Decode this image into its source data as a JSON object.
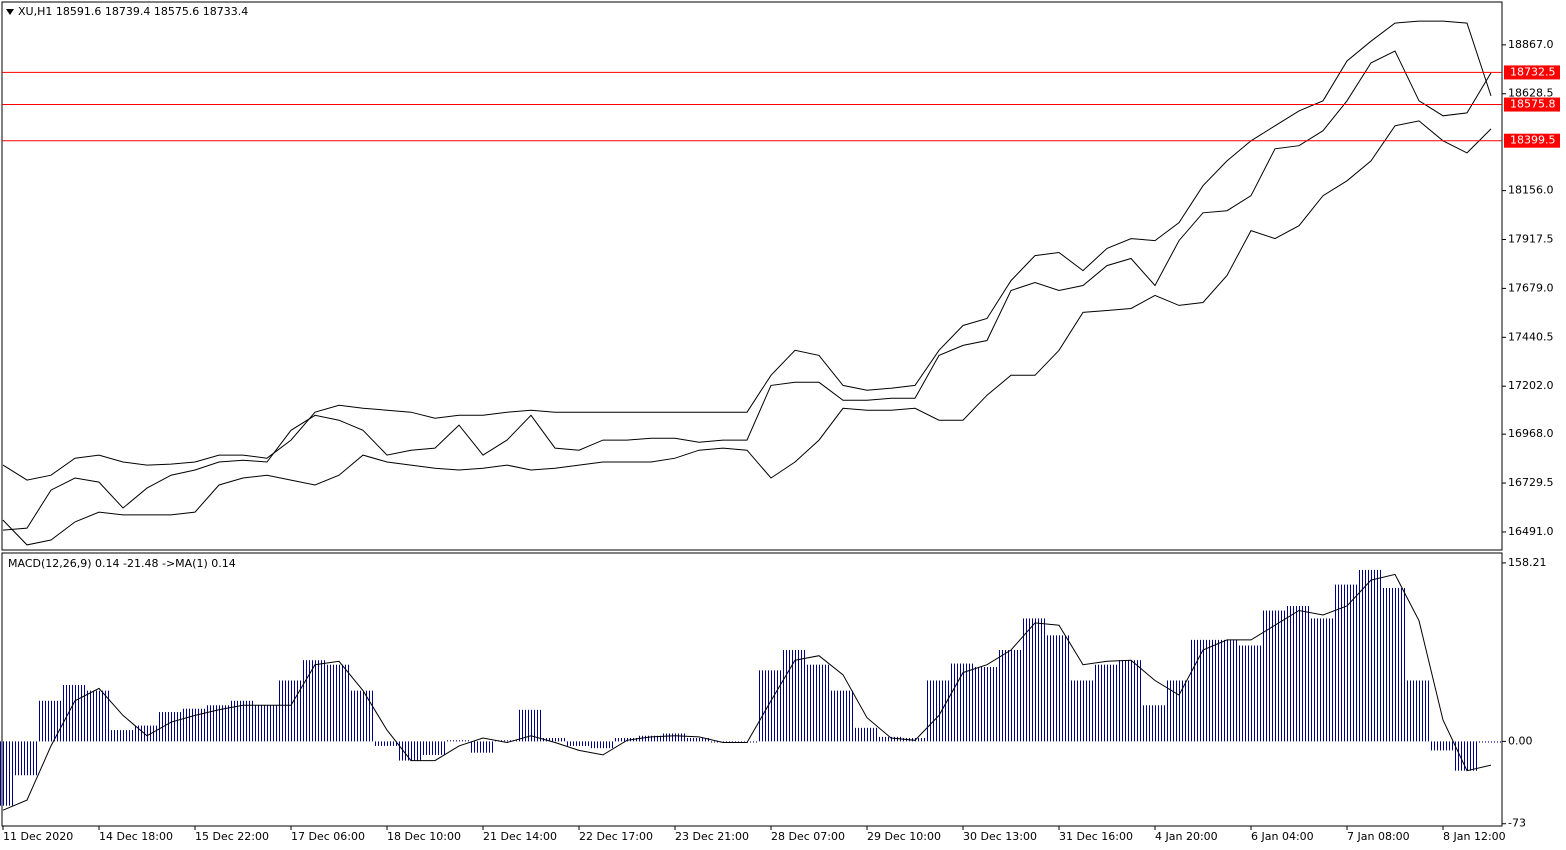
{
  "chart_data": [
    {
      "type": "line",
      "title": "XU,H1  18591.6 18739.4 18575.6 18733.4",
      "x": [
        0,
        6,
        12,
        18,
        24,
        30,
        36,
        42,
        48,
        54,
        60,
        66,
        72,
        78,
        84,
        90,
        96,
        102,
        108,
        114,
        120,
        126,
        132,
        138,
        144,
        150,
        156,
        162,
        168,
        174,
        180,
        186,
        192,
        198,
        204,
        210,
        216,
        222,
        228,
        234,
        240,
        246,
        252,
        258,
        264,
        270,
        276,
        282,
        288,
        294,
        300,
        306,
        312,
        318,
        324,
        330,
        336,
        342,
        348,
        354,
        360,
        366,
        372
      ],
      "xlim": [
        0,
        375
      ],
      "ylim": [
        16403,
        19076
      ],
      "yticks": [
        {
          "value": 16491,
          "label": "16491.0"
        },
        {
          "value": 16729.5,
          "label": "16729.5"
        },
        {
          "value": 16968,
          "label": "16968.0"
        },
        {
          "value": 17202,
          "label": "17202.0"
        },
        {
          "value": 17440.5,
          "label": "17440.5"
        },
        {
          "value": 17679,
          "label": "17679.0"
        },
        {
          "value": 17917.5,
          "label": "17917.5"
        },
        {
          "value": 18156,
          "label": "18156.0"
        },
        {
          "value": 18628.5,
          "label": "18628.5"
        },
        {
          "value": 18867,
          "label": "18867.0"
        }
      ],
      "levels": [
        18732.5,
        18575.8,
        18399.5
      ],
      "level_color": "#ff0000",
      "series": [
        {
          "color": "#000000",
          "values": [
            16500,
            16510,
            16695,
            16754,
            16734,
            16608,
            16705,
            16768,
            16793,
            16832,
            16841,
            16832,
            16987,
            17060,
            17036,
            16987,
            16866,
            16890,
            16900,
            17012,
            16866,
            16939,
            17060,
            16900,
            16890,
            16939,
            16939,
            16948,
            16948,
            16929,
            16939,
            16939,
            17206,
            17221,
            17221,
            17133,
            17133,
            17143,
            17143,
            17352,
            17401,
            17425,
            17669,
            17708,
            17669,
            17693,
            17790,
            17825,
            17693,
            17912,
            18048,
            18058,
            18131,
            18360,
            18375,
            18448,
            18594,
            18779,
            18837,
            18594,
            18521,
            18535,
            18730
          ]
        },
        {
          "color": "#000000",
          "values": [
            16817,
            16744,
            16768,
            16851,
            16866,
            16832,
            16817,
            16822,
            16832,
            16866,
            16866,
            16851,
            16939,
            17075,
            17109,
            17094,
            17085,
            17075,
            17046,
            17060,
            17060,
            17075,
            17085,
            17075,
            17075,
            17075,
            17075,
            17075,
            17075,
            17075,
            17075,
            17075,
            17255,
            17377,
            17352,
            17206,
            17182,
            17192,
            17206,
            17377,
            17498,
            17532,
            17717,
            17839,
            17854,
            17766,
            17874,
            17922,
            17912,
            18000,
            18180,
            18301,
            18399,
            18472,
            18545,
            18594,
            18788,
            18885,
            18973,
            18983,
            18983,
            18973,
            18618
          ]
        },
        {
          "color": "#000000",
          "values": [
            16549,
            16428,
            16452,
            16540,
            16588,
            16574,
            16574,
            16574,
            16588,
            16720,
            16754,
            16768,
            16744,
            16720,
            16768,
            16866,
            16832,
            16817,
            16802,
            16793,
            16802,
            16817,
            16793,
            16802,
            16817,
            16832,
            16832,
            16832,
            16851,
            16890,
            16900,
            16890,
            16754,
            16832,
            16939,
            17094,
            17085,
            17085,
            17094,
            17036,
            17036,
            17158,
            17255,
            17255,
            17377,
            17562,
            17571,
            17581,
            17645,
            17596,
            17610,
            17742,
            17961,
            17922,
            17985,
            18131,
            18204,
            18301,
            18472,
            18496,
            18399,
            18340,
            18457
          ]
        }
      ]
    },
    {
      "type": "macd",
      "title": "MACD(12,26,9) 0.14 -21.48  ->MA(1) 0.14",
      "x": [
        0,
        6,
        12,
        18,
        24,
        30,
        36,
        42,
        48,
        54,
        60,
        66,
        72,
        78,
        84,
        90,
        96,
        102,
        108,
        114,
        120,
        126,
        132,
        138,
        144,
        150,
        156,
        162,
        168,
        174,
        180,
        186,
        192,
        198,
        204,
        210,
        216,
        222,
        228,
        234,
        240,
        246,
        252,
        258,
        264,
        270,
        276,
        282,
        288,
        294,
        300,
        306,
        312,
        318,
        324,
        330,
        336,
        342,
        348,
        354,
        360,
        366,
        372
      ],
      "xlim": [
        0,
        375
      ],
      "xticks": [
        {
          "value": 0,
          "label": "11 Dec 2020"
        },
        {
          "value": 24,
          "label": "14 Dec 18:00"
        },
        {
          "value": 48,
          "label": "15 Dec 22:00"
        },
        {
          "value": 72,
          "label": "17 Dec 06:00"
        },
        {
          "value": 96,
          "label": "18 Dec 10:00"
        },
        {
          "value": 120,
          "label": "21 Dec 14:00"
        },
        {
          "value": 144,
          "label": "22 Dec 17:00"
        },
        {
          "value": 168,
          "label": "23 Dec 21:00"
        },
        {
          "value": 192,
          "label": "28 Dec 07:00"
        },
        {
          "value": 216,
          "label": "29 Dec 10:00"
        },
        {
          "value": 240,
          "label": "30 Dec 13:00"
        },
        {
          "value": 264,
          "label": "31 Dec 16:00"
        },
        {
          "value": 288,
          "label": "4 Jan 20:00"
        },
        {
          "value": 312,
          "label": "6 Jan 04:00"
        },
        {
          "value": 336,
          "label": "7 Jan 08:00"
        },
        {
          "value": 360,
          "label": "8 Jan 12:00"
        }
      ],
      "ylim": [
        -75,
        167
      ],
      "yticks": [
        158.21,
        {
          "value": 0,
          "label": "0.00"
        },
        -73
      ],
      "series": [
        {
          "type": "bar",
          "color": "#000080",
          "values": [
            -57,
            -30,
            36,
            50,
            45,
            10,
            14,
            26,
            29,
            32,
            36,
            32,
            54,
            72,
            68,
            45,
            -4,
            -17,
            -12,
            1,
            -10,
            1,
            28,
            3,
            -4,
            -6,
            3,
            5,
            7,
            3,
            -1,
            -1,
            63,
            81,
            68,
            45,
            12,
            4,
            3,
            54,
            69,
            66,
            81,
            109,
            94,
            54,
            68,
            72,
            32,
            54,
            90,
            90,
            85,
            116,
            120,
            109,
            139,
            152,
            136,
            54,
            -8,
            -26,
            -1
          ]
        },
        {
          "type": "line",
          "color": "#000000",
          "values": [
            -61,
            -52,
            -4,
            36,
            47,
            23,
            5,
            17,
            23,
            28,
            32,
            32,
            32,
            68,
            71,
            45,
            10,
            -17,
            -17,
            -4,
            3,
            -1,
            5,
            -1,
            -8,
            -12,
            1,
            4,
            5,
            4,
            -1,
            -1,
            36,
            72,
            76,
            59,
            21,
            3,
            1,
            23,
            61,
            68,
            81,
            105,
            103,
            68,
            71,
            72,
            54,
            41,
            81,
            90,
            90,
            103,
            116,
            112,
            120,
            143,
            148,
            107,
            19,
            -26,
            -21
          ]
        }
      ]
    }
  ]
}
